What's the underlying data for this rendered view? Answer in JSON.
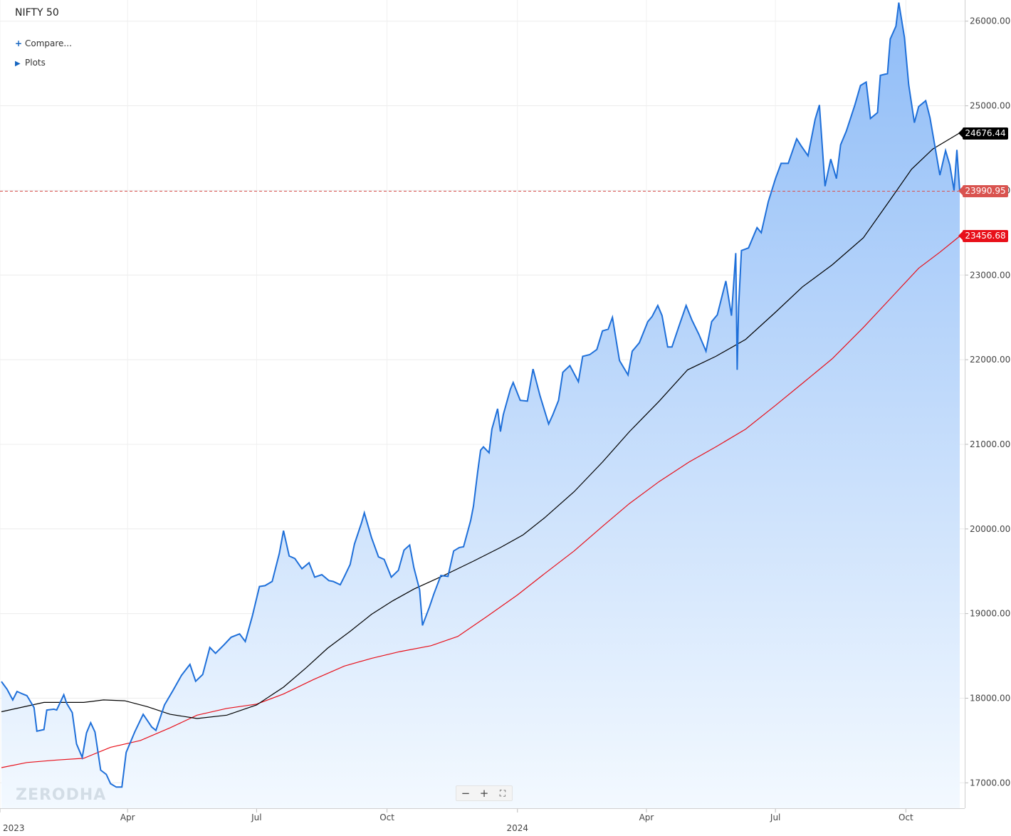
{
  "header": {
    "title": "NIFTY 50",
    "compare_label": "Compare...",
    "plots_label": "Plots"
  },
  "watermark": "ZERODHA",
  "zoom": {
    "minus": "−",
    "plus": "+",
    "fit": "⛶"
  },
  "markers": {
    "sma_short": {
      "value": "24676.44",
      "color": "#000000"
    },
    "last_price": {
      "value": "23990.95",
      "color": "#d9534f"
    },
    "sma_long": {
      "value": "23456.68",
      "color": "#e8101a"
    }
  },
  "chart_data": {
    "type": "area",
    "title": "NIFTY 50",
    "y_ticks": [
      "17000.00",
      "18000.00",
      "19000.00",
      "20000.00",
      "21000.00",
      "22000.00",
      "23000.00",
      "24000.00",
      "25000.00",
      "26000.00"
    ],
    "ylim": [
      16700,
      26250
    ],
    "x_range": [
      "2023-01-01",
      "2024-11-08"
    ],
    "x_ticks": [
      {
        "label": "2023",
        "date": "2023-01-01",
        "row": 2
      },
      {
        "label": "Apr",
        "date": "2023-04-01",
        "row": 1
      },
      {
        "label": "Jul",
        "date": "2023-07-01",
        "row": 1
      },
      {
        "label": "Oct",
        "date": "2023-10-01",
        "row": 1
      },
      {
        "label": "2024",
        "date": "2024-01-01",
        "row": 2
      },
      {
        "label": "Apr",
        "date": "2024-04-01",
        "row": 1
      },
      {
        "label": "Jul",
        "date": "2024-07-01",
        "row": 1
      },
      {
        "label": "Oct",
        "date": "2024-10-01",
        "row": 1
      }
    ],
    "grid": true,
    "colors": {
      "price": "#1e6fd9",
      "sma_short": "#000000",
      "sma_long": "#e8101a",
      "fill_top": "#8fbcf7",
      "fill_bottom": "#f3f9ff"
    },
    "series": [
      {
        "name": "NIFTY 50",
        "points": [
          [
            "2023-01-02",
            18197
          ],
          [
            "2023-01-06",
            18105
          ],
          [
            "2023-01-10",
            17980
          ],
          [
            "2023-01-13",
            18080
          ],
          [
            "2023-01-17",
            18050
          ],
          [
            "2023-01-20",
            18030
          ],
          [
            "2023-01-25",
            17890
          ],
          [
            "2023-01-27",
            17610
          ],
          [
            "2023-02-01",
            17630
          ],
          [
            "2023-02-03",
            17860
          ],
          [
            "2023-02-08",
            17870
          ],
          [
            "2023-02-10",
            17860
          ],
          [
            "2023-02-15",
            18040
          ],
          [
            "2023-02-17",
            17940
          ],
          [
            "2023-02-21",
            17830
          ],
          [
            "2023-02-24",
            17460
          ],
          [
            "2023-02-28",
            17300
          ],
          [
            "2023-03-03",
            17590
          ],
          [
            "2023-03-06",
            17710
          ],
          [
            "2023-03-09",
            17600
          ],
          [
            "2023-03-13",
            17150
          ],
          [
            "2023-03-17",
            17100
          ],
          [
            "2023-03-20",
            16990
          ],
          [
            "2023-03-24",
            16950
          ],
          [
            "2023-03-28",
            16950
          ],
          [
            "2023-03-31",
            17360
          ],
          [
            "2023-04-06",
            17600
          ],
          [
            "2023-04-12",
            17810
          ],
          [
            "2023-04-18",
            17660
          ],
          [
            "2023-04-21",
            17620
          ],
          [
            "2023-04-27",
            17920
          ],
          [
            "2023-05-03",
            18090
          ],
          [
            "2023-05-09",
            18270
          ],
          [
            "2023-05-15",
            18400
          ],
          [
            "2023-05-19",
            18200
          ],
          [
            "2023-05-24",
            18280
          ],
          [
            "2023-05-29",
            18600
          ],
          [
            "2023-06-02",
            18530
          ],
          [
            "2023-06-08",
            18630
          ],
          [
            "2023-06-13",
            18720
          ],
          [
            "2023-06-19",
            18760
          ],
          [
            "2023-06-23",
            18670
          ],
          [
            "2023-06-28",
            18970
          ],
          [
            "2023-07-03",
            19320
          ],
          [
            "2023-07-07",
            19330
          ],
          [
            "2023-07-12",
            19380
          ],
          [
            "2023-07-17",
            19710
          ],
          [
            "2023-07-20",
            19980
          ],
          [
            "2023-07-24",
            19680
          ],
          [
            "2023-07-28",
            19650
          ],
          [
            "2023-08-02",
            19530
          ],
          [
            "2023-08-07",
            19600
          ],
          [
            "2023-08-11",
            19430
          ],
          [
            "2023-08-16",
            19460
          ],
          [
            "2023-08-21",
            19390
          ],
          [
            "2023-08-24",
            19380
          ],
          [
            "2023-08-29",
            19340
          ],
          [
            "2023-09-01",
            19440
          ],
          [
            "2023-09-05",
            19580
          ],
          [
            "2023-09-08",
            19820
          ],
          [
            "2023-09-13",
            20070
          ],
          [
            "2023-09-15",
            20190
          ],
          [
            "2023-09-20",
            19900
          ],
          [
            "2023-09-25",
            19670
          ],
          [
            "2023-09-29",
            19640
          ],
          [
            "2023-10-04",
            19430
          ],
          [
            "2023-10-09",
            19510
          ],
          [
            "2023-10-13",
            19750
          ],
          [
            "2023-10-17",
            19810
          ],
          [
            "2023-10-20",
            19540
          ],
          [
            "2023-10-24",
            19280
          ],
          [
            "2023-10-26",
            18860
          ],
          [
            "2023-10-31",
            19080
          ],
          [
            "2023-11-03",
            19230
          ],
          [
            "2023-11-08",
            19450
          ],
          [
            "2023-11-13",
            19440
          ],
          [
            "2023-11-17",
            19740
          ],
          [
            "2023-11-21",
            19780
          ],
          [
            "2023-11-24",
            19790
          ],
          [
            "2023-11-29",
            20100
          ],
          [
            "2023-12-01",
            20270
          ],
          [
            "2023-12-04",
            20680
          ],
          [
            "2023-12-06",
            20930
          ],
          [
            "2023-12-08",
            20970
          ],
          [
            "2023-12-12",
            20900
          ],
          [
            "2023-12-14",
            21180
          ],
          [
            "2023-12-18",
            21420
          ],
          [
            "2023-12-20",
            21150
          ],
          [
            "2023-12-22",
            21350
          ],
          [
            "2023-12-27",
            21650
          ],
          [
            "2023-12-29",
            21730
          ],
          [
            "2024-01-03",
            21520
          ],
          [
            "2024-01-08",
            21510
          ],
          [
            "2024-01-12",
            21890
          ],
          [
            "2024-01-17",
            21570
          ],
          [
            "2024-01-23",
            21240
          ],
          [
            "2024-01-26",
            21350
          ],
          [
            "2024-01-30",
            21520
          ],
          [
            "2024-02-02",
            21850
          ],
          [
            "2024-02-07",
            21930
          ],
          [
            "2024-02-13",
            21740
          ],
          [
            "2024-02-16",
            22040
          ],
          [
            "2024-02-21",
            22060
          ],
          [
            "2024-02-26",
            22120
          ],
          [
            "2024-03-01",
            22340
          ],
          [
            "2024-03-05",
            22360
          ],
          [
            "2024-03-08",
            22500
          ],
          [
            "2024-03-13",
            21990
          ],
          [
            "2024-03-19",
            21820
          ],
          [
            "2024-03-22",
            22100
          ],
          [
            "2024-03-27",
            22200
          ],
          [
            "2024-04-02",
            22450
          ],
          [
            "2024-04-05",
            22510
          ],
          [
            "2024-04-09",
            22640
          ],
          [
            "2024-04-12",
            22520
          ],
          [
            "2024-04-16",
            22150
          ],
          [
            "2024-04-19",
            22150
          ],
          [
            "2024-04-24",
            22400
          ],
          [
            "2024-04-29",
            22640
          ],
          [
            "2024-05-03",
            22470
          ],
          [
            "2024-05-08",
            22300
          ],
          [
            "2024-05-13",
            22100
          ],
          [
            "2024-05-17",
            22450
          ],
          [
            "2024-05-21",
            22530
          ],
          [
            "2024-05-27",
            22930
          ],
          [
            "2024-05-31",
            22520
          ],
          [
            "2024-06-03",
            23260
          ],
          [
            "2024-06-04",
            21880
          ],
          [
            "2024-06-05",
            22620
          ],
          [
            "2024-06-07",
            23290
          ],
          [
            "2024-06-12",
            23320
          ],
          [
            "2024-06-18",
            23560
          ],
          [
            "2024-06-21",
            23500
          ],
          [
            "2024-06-26",
            23870
          ],
          [
            "2024-07-01",
            24140
          ],
          [
            "2024-07-05",
            24320
          ],
          [
            "2024-07-10",
            24320
          ],
          [
            "2024-07-16",
            24610
          ],
          [
            "2024-07-19",
            24530
          ],
          [
            "2024-07-24",
            24410
          ],
          [
            "2024-07-29",
            24840
          ],
          [
            "2024-08-01",
            25010
          ],
          [
            "2024-08-05",
            24050
          ],
          [
            "2024-08-09",
            24370
          ],
          [
            "2024-08-13",
            24140
          ],
          [
            "2024-08-16",
            24540
          ],
          [
            "2024-08-20",
            24700
          ],
          [
            "2024-08-26",
            25010
          ],
          [
            "2024-08-30",
            25240
          ],
          [
            "2024-09-03",
            25280
          ],
          [
            "2024-09-06",
            24850
          ],
          [
            "2024-09-11",
            24920
          ],
          [
            "2024-09-13",
            25360
          ],
          [
            "2024-09-18",
            25380
          ],
          [
            "2024-09-20",
            25790
          ],
          [
            "2024-09-24",
            25940
          ],
          [
            "2024-09-26",
            26220
          ],
          [
            "2024-09-30",
            25810
          ],
          [
            "2024-10-03",
            25250
          ],
          [
            "2024-10-07",
            24800
          ],
          [
            "2024-10-10",
            24990
          ],
          [
            "2024-10-15",
            25060
          ],
          [
            "2024-10-18",
            24860
          ],
          [
            "2024-10-22",
            24470
          ],
          [
            "2024-10-25",
            24180
          ],
          [
            "2024-10-29",
            24470
          ],
          [
            "2024-11-01",
            24300
          ],
          [
            "2024-11-04",
            24000
          ],
          [
            "2024-11-06",
            24480
          ],
          [
            "2024-11-08",
            23990
          ]
        ]
      },
      {
        "name": "",
        "points": [
          [
            "2023-01-02",
            17840
          ],
          [
            "2023-02-01",
            17950
          ],
          [
            "2023-03-01",
            17950
          ],
          [
            "2023-03-15",
            17980
          ],
          [
            "2023-03-30",
            17970
          ],
          [
            "2023-04-15",
            17900
          ],
          [
            "2023-05-01",
            17810
          ],
          [
            "2023-05-20",
            17760
          ],
          [
            "2023-06-10",
            17800
          ],
          [
            "2023-07-01",
            17920
          ],
          [
            "2023-07-20",
            18130
          ],
          [
            "2023-08-05",
            18360
          ],
          [
            "2023-08-20",
            18590
          ],
          [
            "2023-09-05",
            18790
          ],
          [
            "2023-09-20",
            18990
          ],
          [
            "2023-10-05",
            19150
          ],
          [
            "2023-10-20",
            19290
          ],
          [
            "2023-11-10",
            19450
          ],
          [
            "2023-12-01",
            19620
          ],
          [
            "2023-12-20",
            19780
          ],
          [
            "2024-01-05",
            19930
          ],
          [
            "2024-01-20",
            20130
          ],
          [
            "2024-02-10",
            20440
          ],
          [
            "2024-03-01",
            20790
          ],
          [
            "2024-03-20",
            21150
          ],
          [
            "2024-04-10",
            21510
          ],
          [
            "2024-04-30",
            21880
          ],
          [
            "2024-05-20",
            22040
          ],
          [
            "2024-06-10",
            22240
          ],
          [
            "2024-07-01",
            22560
          ],
          [
            "2024-07-20",
            22860
          ],
          [
            "2024-08-10",
            23120
          ],
          [
            "2024-09-01",
            23440
          ],
          [
            "2024-09-20",
            23890
          ],
          [
            "2024-10-05",
            24250
          ],
          [
            "2024-10-20",
            24490
          ],
          [
            "2024-11-08",
            24680
          ]
        ]
      },
      {
        "name": "",
        "points": [
          [
            "2023-01-02",
            17180
          ],
          [
            "2023-01-20",
            17240
          ],
          [
            "2023-02-10",
            17270
          ],
          [
            "2023-03-01",
            17290
          ],
          [
            "2023-03-20",
            17420
          ],
          [
            "2023-04-10",
            17500
          ],
          [
            "2023-05-01",
            17650
          ],
          [
            "2023-05-20",
            17800
          ],
          [
            "2023-06-10",
            17880
          ],
          [
            "2023-07-01",
            17930
          ],
          [
            "2023-07-20",
            18050
          ],
          [
            "2023-08-10",
            18220
          ],
          [
            "2023-09-01",
            18380
          ],
          [
            "2023-09-20",
            18470
          ],
          [
            "2023-10-10",
            18550
          ],
          [
            "2023-11-01",
            18620
          ],
          [
            "2023-11-20",
            18730
          ],
          [
            "2023-12-10",
            18960
          ],
          [
            "2024-01-01",
            19220
          ],
          [
            "2024-01-20",
            19470
          ],
          [
            "2024-02-10",
            19740
          ],
          [
            "2024-03-01",
            20030
          ],
          [
            "2024-03-20",
            20300
          ],
          [
            "2024-04-10",
            20560
          ],
          [
            "2024-05-01",
            20790
          ],
          [
            "2024-05-20",
            20970
          ],
          [
            "2024-06-10",
            21180
          ],
          [
            "2024-07-01",
            21460
          ],
          [
            "2024-07-20",
            21720
          ],
          [
            "2024-08-10",
            22010
          ],
          [
            "2024-09-01",
            22380
          ],
          [
            "2024-09-20",
            22720
          ],
          [
            "2024-10-10",
            23080
          ],
          [
            "2024-10-25",
            23270
          ],
          [
            "2024-11-08",
            23460
          ]
        ]
      }
    ]
  }
}
